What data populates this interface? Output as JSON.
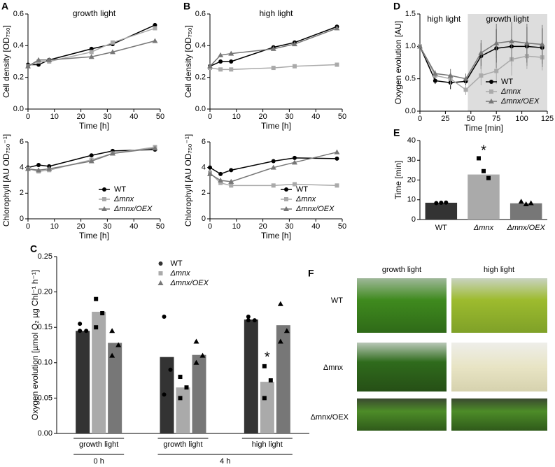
{
  "chart_data": [
    {
      "panel": "A",
      "type": "line",
      "title": "growth light",
      "xlabel": "Time [h]",
      "ylabel": "Cell density [OD₇₅₀]",
      "x": [
        0,
        4,
        8,
        24,
        32,
        48
      ],
      "xlim": [
        0,
        50
      ],
      "xticks": [
        0,
        10,
        20,
        30,
        40,
        50
      ],
      "ylim": [
        0,
        0.6
      ],
      "yticks": [
        {
          "value": 0,
          "label": "0.0"
        },
        {
          "value": 0.2,
          "label": "0.2"
        },
        {
          "value": 0.4,
          "label": "0.4"
        },
        {
          "value": 0.6,
          "label": "0.6"
        }
      ],
      "series": [
        {
          "color": "#000000",
          "marker": "circle",
          "values": [
            0.28,
            0.28,
            0.31,
            0.38,
            0.41,
            0.53
          ]
        },
        {
          "color": "#aaaaaa",
          "marker": "square",
          "values": [
            0.27,
            0.3,
            0.3,
            0.36,
            0.42,
            0.51
          ]
        },
        {
          "color": "#777777",
          "marker": "triangle",
          "values": [
            0.27,
            0.31,
            0.31,
            0.33,
            0.36,
            0.43
          ]
        }
      ]
    },
    {
      "type": "line",
      "xlabel": "Time [h]",
      "ylabel": "Chlorophyll [AU OD₇₅₀⁻¹]",
      "x": [
        0,
        4,
        8,
        24,
        32,
        48
      ],
      "xlim": [
        0,
        50
      ],
      "xticks": [
        0,
        10,
        20,
        30,
        40,
        50
      ],
      "ylim": [
        0,
        6
      ],
      "yticks": [
        0,
        2,
        4,
        6
      ],
      "legend": "lower right",
      "series": [
        {
          "name": "WT",
          "color": "#000000",
          "marker": "circle",
          "values": [
            4.0,
            4.2,
            4.1,
            4.95,
            5.3,
            5.4
          ]
        },
        {
          "name": "Δmnx",
          "color": "#aaaaaa",
          "marker": "square",
          "values": [
            3.9,
            3.7,
            3.8,
            4.6,
            5.1,
            5.6
          ]
        },
        {
          "name": "Δmnx/OEX",
          "color": "#777777",
          "marker": "triangle",
          "values": [
            3.9,
            3.8,
            3.9,
            4.5,
            5.1,
            5.5
          ]
        }
      ]
    },
    {
      "panel": "B",
      "type": "line",
      "title": "high light",
      "xlabel": "Time [h]",
      "ylabel": "Cell density [OD₇₅₀]",
      "x": [
        0,
        4,
        8,
        24,
        32,
        48
      ],
      "xlim": [
        0,
        50
      ],
      "xticks": [
        0,
        10,
        20,
        30,
        40,
        50
      ],
      "ylim": [
        0,
        0.6
      ],
      "yticks": [
        {
          "value": 0,
          "label": "0.0"
        },
        {
          "value": 0.2,
          "label": "0.2"
        },
        {
          "value": 0.4,
          "label": "0.4"
        },
        {
          "value": 0.6,
          "label": "0.6"
        }
      ],
      "series": [
        {
          "color": "#000000",
          "marker": "circle",
          "values": [
            0.27,
            0.3,
            0.3,
            0.39,
            0.42,
            0.52
          ]
        },
        {
          "color": "#aaaaaa",
          "marker": "square",
          "values": [
            0.26,
            0.25,
            0.25,
            0.26,
            0.27,
            0.28
          ]
        },
        {
          "color": "#777777",
          "marker": "triangle",
          "values": [
            0.27,
            0.34,
            0.35,
            0.38,
            0.41,
            0.51
          ]
        }
      ]
    },
    {
      "type": "line",
      "xlabel": "Time [h]",
      "ylabel": "Chlorophyll [AU OD₇₅₀⁻¹]",
      "x": [
        0,
        4,
        8,
        24,
        32,
        48
      ],
      "xlim": [
        0,
        50
      ],
      "xticks": [
        0,
        10,
        20,
        30,
        40,
        50
      ],
      "ylim": [
        0,
        6
      ],
      "yticks": [
        0,
        2,
        4,
        6
      ],
      "legend": "lower right",
      "series": [
        {
          "name": "WT",
          "color": "#000000",
          "marker": "circle",
          "values": [
            4.0,
            3.5,
            3.8,
            4.5,
            4.75,
            4.7
          ]
        },
        {
          "name": "Δmnx",
          "color": "#aaaaaa",
          "marker": "square",
          "values": [
            3.6,
            2.8,
            2.6,
            2.6,
            2.7,
            2.6
          ]
        },
        {
          "name": "Δmnx/OEX",
          "color": "#777777",
          "marker": "triangle",
          "values": [
            3.5,
            3.0,
            2.9,
            4.0,
            4.4,
            5.2
          ]
        }
      ]
    },
    {
      "panel": "C",
      "type": "bar",
      "ylabel": "Oxygen evolution [µmol O₂ µg Chl⁻¹ h⁻¹]",
      "categories": [
        "growth light",
        "growth light",
        "high light"
      ],
      "time_labels": [
        "0 h",
        "4 h"
      ],
      "ylim": [
        0,
        0.25
      ],
      "yticks": [
        {
          "value": 0,
          "label": "0.00"
        },
        {
          "value": 0.05,
          "label": "0.05"
        },
        {
          "value": 0.1,
          "label": "0.10"
        },
        {
          "value": 0.15,
          "label": "0.15"
        },
        {
          "value": 0.2,
          "label": "0.20"
        },
        {
          "value": 0.25,
          "label": "0.25"
        }
      ],
      "legend": "upper center",
      "annotations": [
        "*"
      ],
      "series": [
        {
          "name": "WT",
          "color": "#333333",
          "marker": "circle",
          "values": [
            0.145,
            0.108,
            0.161
          ],
          "points": [
            [
              0.155,
              0.145,
              0.145
            ],
            [
              0.165,
              0.09,
              0.055
            ],
            [
              0.165,
              0.16,
              0.16
            ]
          ]
        },
        {
          "name": "Δmnx",
          "color": "#aaaaaa",
          "marker": "square",
          "values": [
            0.172,
            0.065,
            0.073
          ],
          "points": [
            [
              0.19,
              0.17,
              0.15
            ],
            [
              0.08,
              0.065,
              0.05
            ],
            [
              0.095,
              0.075,
              0.05
            ]
          ]
        },
        {
          "name": "Δmnx/OEX",
          "color": "#777777",
          "marker": "triangle",
          "values": [
            0.128,
            0.111,
            0.153
          ],
          "points": [
            [
              0.145,
              0.125,
              0.11
            ],
            [
              0.13,
              0.11,
              0.1
            ],
            [
              0.183,
              0.145,
              0.13
            ]
          ]
        }
      ]
    },
    {
      "panel": "D",
      "type": "line",
      "xlabel": "Time [min]",
      "ylabel": "Oxygen evolution [AU]",
      "annotations": [
        "high light",
        "growth light"
      ],
      "shaded_x": [
        47,
        125
      ],
      "x": [
        0,
        15,
        30,
        45,
        60,
        75,
        90,
        105,
        120
      ],
      "xlim": [
        0,
        125
      ],
      "xticks": [
        0,
        25,
        50,
        75,
        100,
        125
      ],
      "ylim": [
        0,
        1.5
      ],
      "yticks": [
        {
          "value": 0,
          "label": "0.0"
        },
        {
          "value": 0.5,
          "label": "0.5"
        },
        {
          "value": 1,
          "label": "1.0"
        },
        {
          "value": 1.5,
          "label": "1.5"
        }
      ],
      "legend": "lower right",
      "series": [
        {
          "name": "WT",
          "color": "#000000",
          "marker": "circle",
          "values": [
            1.0,
            0.47,
            0.44,
            0.46,
            0.85,
            0.97,
            1.0,
            1.0,
            0.98
          ],
          "errors": [
            0,
            0.05,
            0.1,
            0.08,
            0.2,
            0.3,
            0.3,
            0.3,
            0.3
          ]
        },
        {
          "name": "Δmnx",
          "color": "#aaaaaa",
          "marker": "square",
          "values": [
            1.0,
            0.55,
            0.5,
            0.33,
            0.55,
            0.62,
            0.8,
            0.85,
            0.83
          ],
          "errors": [
            0,
            0.05,
            0.1,
            0.08,
            0.15,
            0.2,
            0.25,
            0.2,
            0.2
          ]
        },
        {
          "name": "Δmnx/OEX",
          "color": "#777777",
          "marker": "triangle",
          "values": [
            1.0,
            0.58,
            0.55,
            0.5,
            0.9,
            1.05,
            1.08,
            1.05,
            1.03
          ],
          "errors": [
            0,
            0.05,
            0.1,
            0.08,
            0.2,
            0.3,
            0.3,
            0.3,
            0.3
          ]
        }
      ]
    },
    {
      "panel": "E",
      "type": "bar",
      "ylabel": "Time [min]",
      "categories": [
        "WT",
        "Δmnx",
        "Δmnx/OEX"
      ],
      "values": [
        8.5,
        22.8,
        8.2
      ],
      "colors": [
        "#333333",
        "#aaaaaa",
        "#777777"
      ],
      "markers": [
        "circle",
        "square",
        "triangle"
      ],
      "points": [
        [
          8.3,
          8.5,
          8.6
        ],
        [
          31,
          24.5,
          21
        ],
        [
          9.1,
          7.8,
          8.3
        ]
      ],
      "ylim": [
        0,
        40
      ],
      "yticks": [
        0,
        10,
        20,
        30,
        40
      ],
      "annotations": [
        "*"
      ]
    }
  ],
  "photo_panel": {
    "panel": "F",
    "columns": [
      "growth light",
      "high light"
    ],
    "rows": [
      "WT",
      "Δmnx",
      "Δmnx/OEX"
    ]
  }
}
